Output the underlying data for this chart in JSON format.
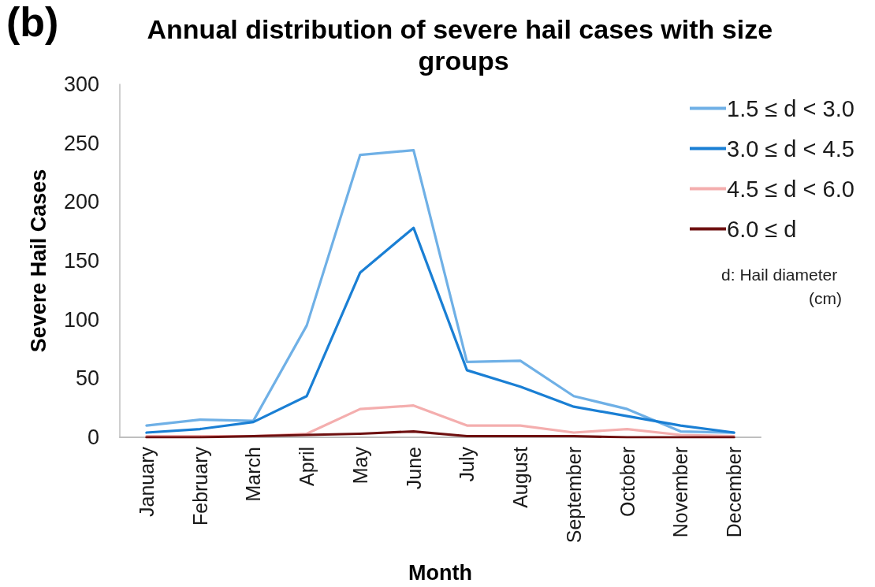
{
  "chart_data": {
    "type": "line",
    "title": "Annual distribution of severe hail cases with size groups",
    "xlabel": "Month",
    "ylabel": "Severe Hail Cases",
    "categories": [
      "January",
      "February",
      "March",
      "April",
      "May",
      "June",
      "July",
      "August",
      "September",
      "October",
      "November",
      "December"
    ],
    "series": [
      {
        "name": "1.5 ≤ d < 3.0",
        "color": "#6fb0e6",
        "values": [
          10,
          15,
          14,
          95,
          240,
          244,
          64,
          65,
          35,
          24,
          5,
          4
        ]
      },
      {
        "name": "3.0 ≤ d < 4.5",
        "color": "#1a7fd4",
        "values": [
          4,
          7,
          13,
          35,
          140,
          178,
          57,
          43,
          26,
          18,
          10,
          4
        ]
      },
      {
        "name": "4.5 ≤ d < 6.0",
        "color": "#f4aeae",
        "values": [
          1,
          1,
          1,
          3,
          24,
          27,
          10,
          10,
          4,
          7,
          2,
          1
        ]
      },
      {
        "name": "6.0 ≤ d",
        "color": "#6e1010",
        "values": [
          0,
          0,
          1,
          2,
          3,
          5,
          1,
          1,
          1,
          0,
          0,
          0
        ]
      }
    ],
    "ylim": [
      0,
      300
    ],
    "yticks": [
      0,
      50,
      100,
      150,
      200,
      250,
      300
    ],
    "grid": false,
    "legend": "top right",
    "marker": "none",
    "line_style": "solid",
    "annotations": [
      "(b)",
      "d: Hail diameter (cm)"
    ]
  }
}
